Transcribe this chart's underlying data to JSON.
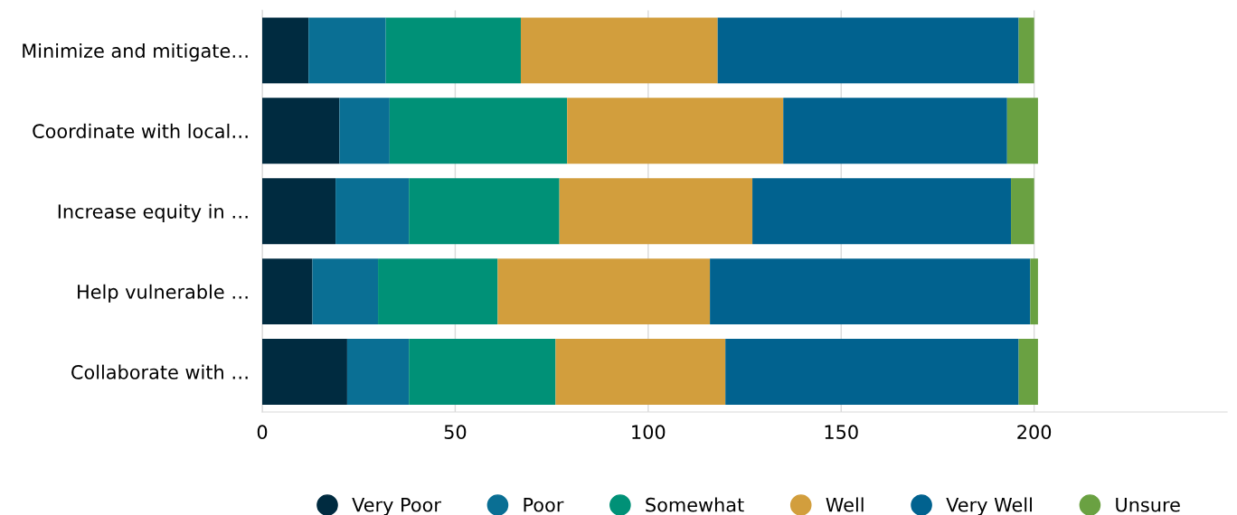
{
  "chart_data": {
    "type": "bar",
    "orientation": "horizontal",
    "stacked": true,
    "categories": [
      "Minimize and mitigate…",
      "Coordinate with local…",
      "Increase equity in …",
      "Help vulnerable …",
      "Collaborate with …"
    ],
    "series": [
      {
        "name": "Very Poor",
        "color": "#002b40",
        "values": [
          12,
          20,
          19,
          13,
          22
        ]
      },
      {
        "name": "Poor",
        "color": "#0a6f94",
        "values": [
          20,
          13,
          19,
          17,
          16
        ]
      },
      {
        "name": "Somewhat",
        "color": "#009177",
        "values": [
          35,
          46,
          39,
          31,
          38
        ]
      },
      {
        "name": "Well",
        "color": "#d29e3d",
        "values": [
          51,
          56,
          50,
          55,
          44
        ]
      },
      {
        "name": "Very Well",
        "color": "#01628f",
        "values": [
          78,
          58,
          67,
          83,
          76
        ]
      },
      {
        "name": "Unsure",
        "color": "#6aa142",
        "values": [
          4,
          8,
          6,
          2,
          5
        ]
      }
    ],
    "xlim": [
      0,
      250
    ],
    "xticks": [
      0,
      50,
      100,
      150,
      200
    ],
    "grid": "x",
    "legend": "bottom"
  }
}
